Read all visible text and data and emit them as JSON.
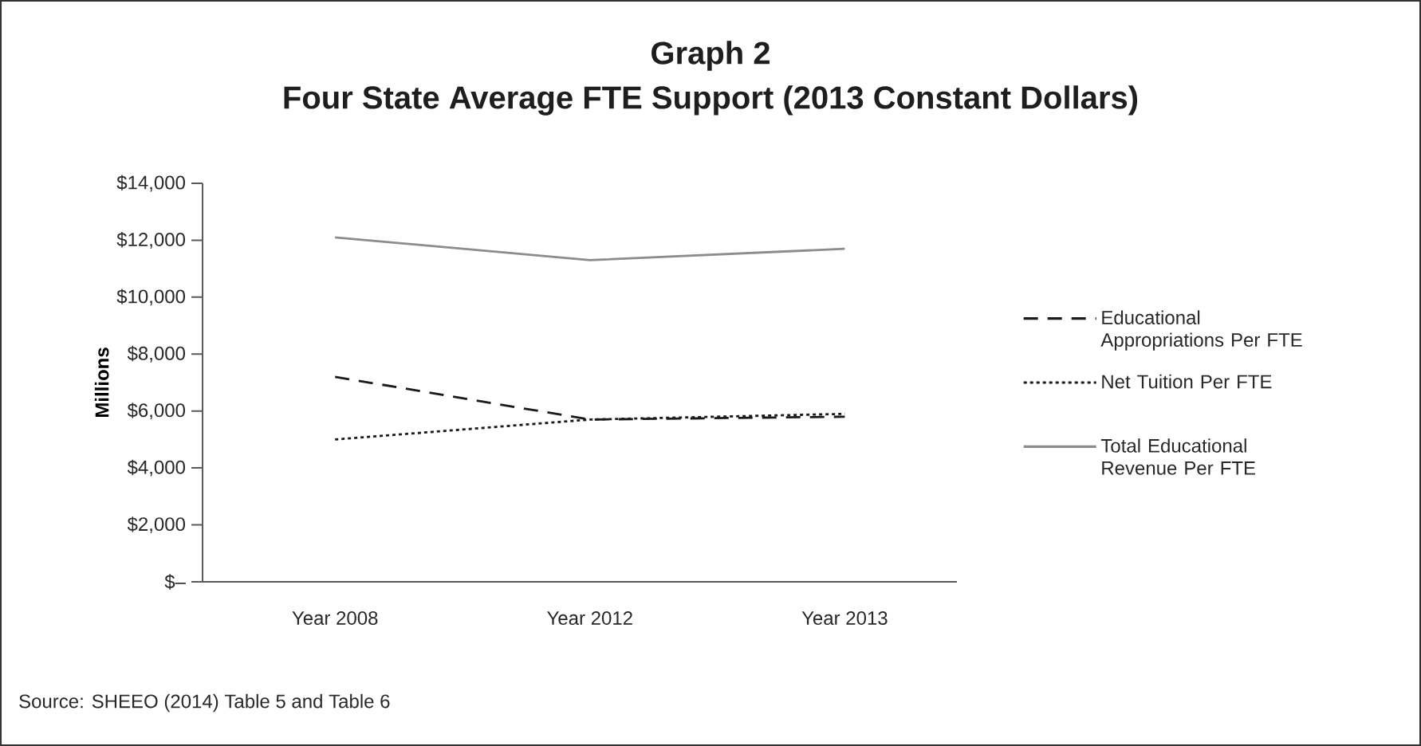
{
  "chart_data": {
    "type": "line",
    "title": "Graph 2",
    "subtitle": "Four State Average FTE Support (2013 Constant Dollars)",
    "ylabel": "Millions",
    "categories": [
      "Year 2008",
      "Year 2012",
      "Year 2013"
    ],
    "series": [
      {
        "name": "Educational Appropriations Per FTE",
        "color": "#1a1a1a",
        "line_style": "dashed",
        "values": [
          7200,
          5700,
          5800
        ]
      },
      {
        "name": "Net Tuition Per FTE",
        "color": "#1a1a1a",
        "line_style": "dotted",
        "values": [
          5000,
          5700,
          5900
        ]
      },
      {
        "name": "Total Educational Revenue Per FTE",
        "color": "#8c8c8c",
        "line_style": "solid",
        "values": [
          12100,
          11300,
          11700
        ]
      }
    ],
    "ylim": [
      0,
      14000
    ],
    "yticks": [
      {
        "value": 0,
        "label": "$–"
      },
      {
        "value": 2000,
        "label": "$2,000"
      },
      {
        "value": 4000,
        "label": "$4,000"
      },
      {
        "value": 6000,
        "label": "$6,000"
      },
      {
        "value": 8000,
        "label": "$8,000"
      },
      {
        "value": 10000,
        "label": "$10,000"
      },
      {
        "value": 12000,
        "label": "$12,000"
      },
      {
        "value": 14000,
        "label": "$14,000"
      }
    ],
    "grid": false,
    "legend": "right",
    "marker": "none",
    "annotations": [
      "Source:  SHEEO (2014) Table 5 and Table 6"
    ]
  }
}
